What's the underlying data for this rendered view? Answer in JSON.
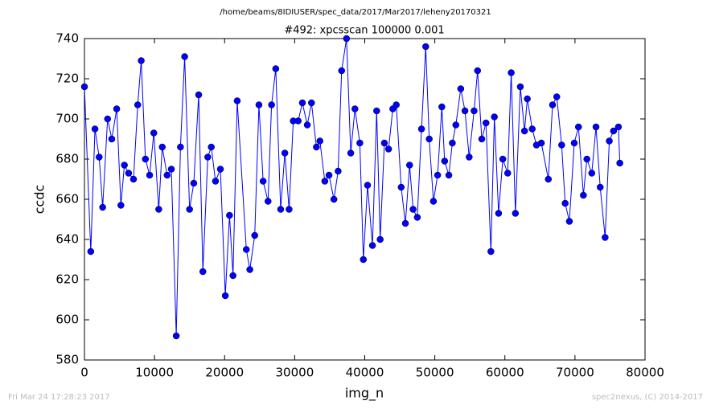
{
  "chart_data": {
    "type": "line",
    "title": "/home/beams/8IDIUSER/spec_data/2017/Mar2017/leheny20170321",
    "subtitle": "#492: xpcsscan 100000 0.001",
    "xlabel": "img_n",
    "ylabel": "ccdc",
    "annotations": [
      "Fri Mar 24 17:28:23 2017",
      "spec2nexus, (C) 2014-2017"
    ],
    "color": "#0000ff",
    "marker": "circle",
    "x": [
      0,
      900,
      1500,
      2100,
      2600,
      3300,
      3900,
      4600,
      5200,
      5700,
      6300,
      7000,
      7600,
      8100,
      8700,
      9300,
      9900,
      10600,
      11100,
      11800,
      12400,
      13100,
      13700,
      14300,
      15000,
      15600,
      16300,
      16900,
      17600,
      18100,
      18700,
      19400,
      20100,
      20700,
      21200,
      21800,
      23100,
      23600,
      24300,
      24900,
      25500,
      26200,
      26700,
      27300,
      28000,
      28600,
      29200,
      29800,
      30500,
      31100,
      31800,
      32400,
      33100,
      33600,
      34300,
      34900,
      35600,
      36200,
      36700,
      37400,
      38000,
      38600,
      39300,
      39800,
      40400,
      41100,
      41700,
      42200,
      42800,
      43400,
      44000,
      44500,
      45200,
      45800,
      46400,
      46900,
      47500,
      48100,
      48700,
      49200,
      49800,
      50400,
      51000,
      51400,
      52000,
      52500,
      53000,
      53700,
      54300,
      54900,
      55600,
      56100,
      56700,
      57300,
      58000,
      58500,
      59100,
      59700,
      60400,
      60900,
      61500,
      62200,
      62800,
      63200,
      63900,
      64500,
      65200,
      66200,
      66800,
      67400,
      68100,
      68600,
      69200,
      69900,
      70500,
      71200,
      71700,
      72400,
      73000,
      73600,
      74300,
      74900,
      75500,
      76200,
      76400
    ],
    "values": [
      716,
      634,
      695,
      681,
      656,
      700,
      690,
      705,
      657,
      677,
      673,
      670,
      707,
      729,
      680,
      672,
      693,
      655,
      686,
      672,
      675,
      592,
      686,
      731,
      655,
      668,
      712,
      624,
      681,
      686,
      669,
      675,
      612,
      652,
      622,
      709,
      635,
      625,
      642,
      707,
      669,
      659,
      707,
      725,
      655,
      683,
      655,
      699,
      699,
      708,
      697,
      708,
      686,
      689,
      669,
      672,
      660,
      674,
      724,
      740,
      683,
      705,
      688,
      630,
      667,
      637,
      704,
      640,
      688,
      685,
      705,
      707,
      666,
      648,
      677,
      655,
      651,
      695,
      736,
      690,
      659,
      672,
      706,
      679,
      672,
      688,
      697,
      715,
      704,
      681,
      704,
      724,
      690,
      698,
      634,
      701,
      653,
      680,
      673,
      723,
      653,
      716,
      694,
      710,
      695,
      687,
      688,
      670,
      707,
      711,
      687,
      658,
      649,
      688,
      696,
      662,
      680,
      673,
      696,
      666,
      641,
      689,
      694,
      696,
      678
    ],
    "xlim": [
      0,
      80000
    ],
    "xticks": [
      0,
      10000,
      20000,
      30000,
      40000,
      50000,
      60000,
      70000,
      80000
    ],
    "ylim": [
      580,
      740
    ],
    "yticks": [
      580,
      600,
      620,
      640,
      660,
      680,
      700,
      720,
      740
    ]
  }
}
